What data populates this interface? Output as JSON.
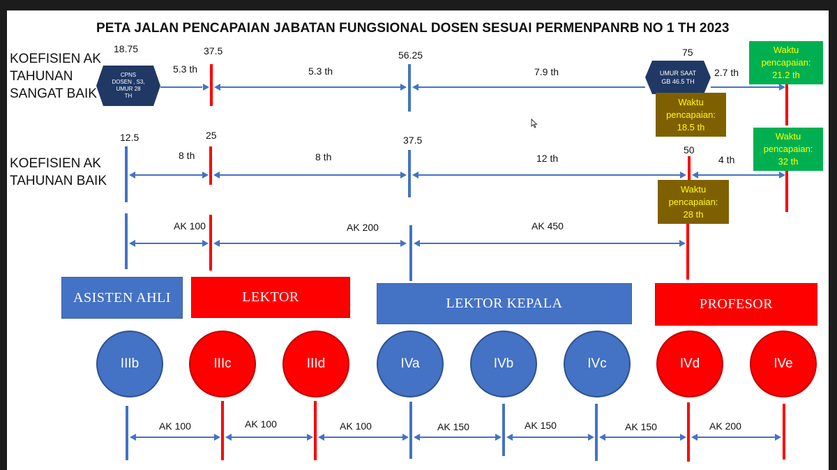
{
  "title": "PETA JALAN PENCAPAIAN JABATAN FUNGSIONAL DOSEN SESUAI PERMENPANRB NO 1 TH 2023",
  "row1": {
    "label": "KOEFISIEN AK TAHUNAN SANGAT BAIK",
    "values": [
      "18.75",
      "37.5",
      "56.25",
      "75"
    ],
    "durations": [
      "5.3 th",
      "5.3 th",
      "7.9 th",
      "2.7 th"
    ],
    "start_box": [
      "CPNS",
      "DOSEN , S3,",
      "UMUR 28",
      "TH"
    ],
    "end_box": [
      "UMUR SAAT",
      "GB 46.5 TH"
    ],
    "notes": [
      {
        "line1": "Waktu",
        "line2": "pencapaian:",
        "line3": "21.2 th"
      },
      {
        "line1": "Waktu",
        "line2": "pencapaian:",
        "line3": "18.5 th"
      }
    ]
  },
  "row2": {
    "label": "KOEFISIEN AK TAHUNAN BAIK",
    "values": [
      "12.5",
      "25",
      "37.5",
      "50"
    ],
    "durations": [
      "8 th",
      "8 th",
      "12 th",
      "4 th"
    ],
    "notes": [
      {
        "line1": "Waktu",
        "line2": "pencapaian:",
        "line3": "32 th"
      },
      {
        "line1": "Waktu",
        "line2": "pencapaian:",
        "line3": "28 th"
      }
    ]
  },
  "row3": {
    "ak": [
      "AK 100",
      "AK 200",
      "AK 450"
    ]
  },
  "positions": [
    "ASISTEN AHLI",
    "LEKTOR",
    "LEKTOR KEPALA",
    "PROFESOR"
  ],
  "grades": [
    "IIIb",
    "IIIc",
    "IIId",
    "IVa",
    "IVb",
    "IVc",
    "IVd",
    "IVe"
  ],
  "grade_ak": [
    "AK 100",
    "AK 100",
    "AK 100",
    "AK 150",
    "AK 150",
    "AK 150",
    "AK 200"
  ],
  "colors": {
    "blue": "#4472c4",
    "red": "#ff0000",
    "green": "#00b050",
    "brown": "#7f6000",
    "yellow": "#ffff00"
  }
}
